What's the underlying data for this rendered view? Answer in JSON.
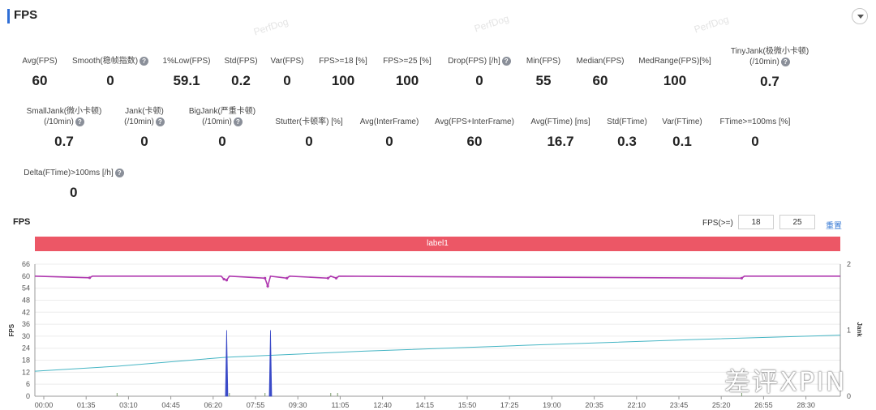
{
  "header": {
    "title": "FPS"
  },
  "watermark": [
    "PerfDog",
    "PerfDog",
    "PerfDog"
  ],
  "metrics": [
    {
      "label": "Avg(FPS)",
      "value": "60",
      "help": false
    },
    {
      "label": "Smooth(稳帧指数)",
      "value": "0",
      "help": true
    },
    {
      "label": "1%Low(FPS)",
      "value": "59.1",
      "help": false
    },
    {
      "label": "Std(FPS)",
      "value": "0.2",
      "help": false
    },
    {
      "label": "Var(FPS)",
      "value": "0",
      "help": false
    },
    {
      "label": "FPS>=18 [%]",
      "value": "100",
      "help": false
    },
    {
      "label": "FPS>=25 [%]",
      "value": "100",
      "help": false
    },
    {
      "label": "Drop(FPS) [/h]",
      "value": "0",
      "help": true
    },
    {
      "label": "Min(FPS)",
      "value": "55",
      "help": false
    },
    {
      "label": "Median(FPS)",
      "value": "60",
      "help": false
    },
    {
      "label": "MedRange(FPS)[%]",
      "value": "100",
      "help": false
    },
    {
      "label": "TinyJank(极微小卡顿)",
      "label2": "(/10min)",
      "value": "0.7",
      "help": true
    },
    {
      "label": "SmallJank(微小卡顿)",
      "label2": "(/10min)",
      "value": "0.7",
      "help": true
    },
    {
      "label": "Jank(卡顿)",
      "label2": "(/10min)",
      "value": "0",
      "help": true
    },
    {
      "label": "BigJank(严重卡顿)",
      "label2": "(/10min)",
      "value": "0",
      "help": true
    },
    {
      "label": "Stutter(卡顿率) [%]",
      "value": "0",
      "help": false
    },
    {
      "label": "Avg(InterFrame)",
      "value": "0",
      "help": false
    },
    {
      "label": "Avg(FPS+InterFrame)",
      "value": "60",
      "help": false
    },
    {
      "label": "Avg(FTime) [ms]",
      "value": "16.7",
      "help": false
    },
    {
      "label": "Std(FTime)",
      "value": "0.3",
      "help": false
    },
    {
      "label": "Var(FTime)",
      "value": "0.1",
      "help": false
    },
    {
      "label": "FTime>=100ms [%]",
      "value": "0",
      "help": false
    },
    {
      "label": "Delta(FTime)>100ms [/h]",
      "value": "0",
      "help": true
    }
  ],
  "help_glyph": "?",
  "chart_header": {
    "title": "FPS",
    "filter_label": "FPS(>=)",
    "filter_value_1": "18",
    "filter_value_2": "25",
    "reset_label": "重置"
  },
  "label_bar": "label1",
  "xpin_logo": "差评XPIN",
  "colors": {
    "accent": "#2f6ed6",
    "label_bar": "#ec5766",
    "fps_series": "#b03ab0",
    "jank_series": "#3b4bc8",
    "trend_series": "#45b5c4",
    "reset_link": "#3a7bd5"
  },
  "chart_data": {
    "type": "line",
    "title": "",
    "xlabel": "",
    "ylabel": "FPS",
    "y2label": "Jank",
    "ylim": [
      0,
      66
    ],
    "y2lim": [
      0,
      2
    ],
    "yticks": [
      0,
      6,
      12,
      18,
      24,
      30,
      36,
      42,
      48,
      54,
      60,
      66
    ],
    "y2ticks": [
      0,
      1,
      2
    ],
    "xticks": [
      "00:00",
      "01:35",
      "03:10",
      "04:45",
      "06:20",
      "07:55",
      "09:30",
      "11:05",
      "12:40",
      "14:15",
      "15:50",
      "17:25",
      "19:00",
      "20:35",
      "22:10",
      "23:45",
      "25:20",
      "26:55",
      "28:30"
    ],
    "xlim_minutes": [
      0,
      29.4
    ],
    "grid": true,
    "legend": "none",
    "series": [
      {
        "axis": "left",
        "style": "line-with-markers",
        "points": [
          [
            0,
            60
          ],
          [
            2,
            59.2
          ],
          [
            2.1,
            60
          ],
          [
            6.8,
            60
          ],
          [
            6.9,
            58.5
          ],
          [
            7.0,
            58
          ],
          [
            7.1,
            60
          ],
          [
            8.4,
            59
          ],
          [
            8.5,
            55
          ],
          [
            8.6,
            60
          ],
          [
            9.2,
            59
          ],
          [
            9.3,
            60
          ],
          [
            10.7,
            59
          ],
          [
            10.8,
            60
          ],
          [
            11.0,
            59
          ],
          [
            11.1,
            60
          ],
          [
            25.8,
            59
          ],
          [
            25.9,
            60
          ],
          [
            29.4,
            60
          ]
        ]
      },
      {
        "axis": "right",
        "style": "spike",
        "points": [
          [
            7.0,
            1.0
          ],
          [
            8.6,
            1.0
          ]
        ]
      },
      {
        "axis": "left",
        "style": "line",
        "points": [
          [
            0,
            12.5
          ],
          [
            3,
            15
          ],
          [
            7,
            19.5
          ],
          [
            12,
            22.5
          ],
          [
            18,
            25.5
          ],
          [
            24,
            28.3
          ],
          [
            29.4,
            30.5
          ]
        ]
      }
    ]
  }
}
